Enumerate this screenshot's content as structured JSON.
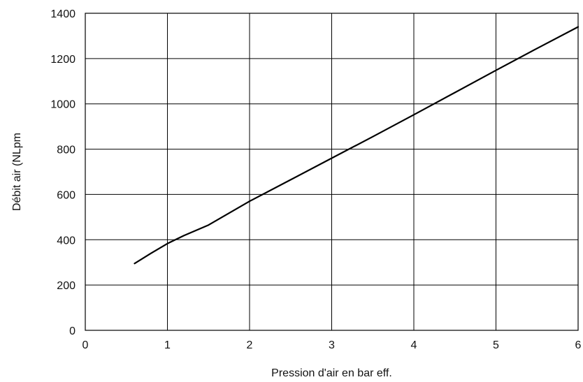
{
  "chart_data": {
    "type": "line",
    "title": "",
    "xlabel": "Pression d'air en bar eff.",
    "ylabel": "Débit air (NLpm",
    "xlim": [
      0,
      6
    ],
    "ylim": [
      0,
      1400
    ],
    "x_ticks": [
      0,
      1,
      2,
      3,
      4,
      5,
      6
    ],
    "y_ticks": [
      0,
      200,
      400,
      600,
      800,
      1000,
      1200,
      1400
    ],
    "x_tick_labels": [
      "0",
      "1",
      "2",
      "3",
      "4",
      "5",
      "6"
    ],
    "y_tick_labels": [
      "0",
      "200",
      "400",
      "600",
      "800",
      "1000",
      "1200",
      "1400"
    ],
    "grid": true,
    "legend": "none",
    "series": [
      {
        "color": "#000000",
        "x": [
          0.6,
          0.8,
          1.0,
          1.2,
          1.5,
          2.0,
          2.5,
          3.0,
          3.5,
          4.0,
          4.5,
          5.0,
          5.5,
          6.0
        ],
        "y": [
          295,
          340,
          383,
          418,
          465,
          570,
          665,
          760,
          855,
          952,
          1050,
          1148,
          1245,
          1340
        ]
      }
    ]
  }
}
